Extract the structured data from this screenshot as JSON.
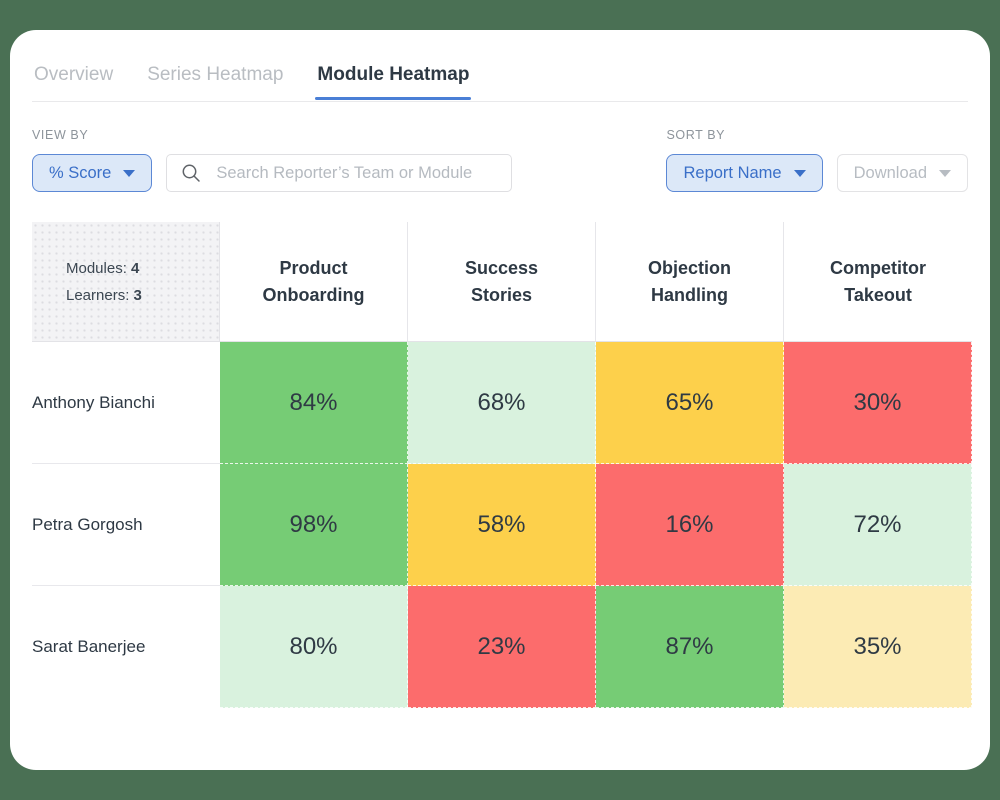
{
  "colors": {
    "page_background": "#4a7054",
    "card_background": "#ffffff",
    "tab_underline": "#4a7fd6",
    "accent_blue": "#3a6fc8",
    "accent_blue_bg": "#dce8f8",
    "accent_blue_border": "#5c88d5",
    "text_dark": "#2e3944",
    "text_muted": "#b9bdc2",
    "label_gray": "#8d949b"
  },
  "tabs": [
    {
      "label": "Overview",
      "active": false
    },
    {
      "label": "Series Heatmap",
      "active": false
    },
    {
      "label": "Module Heatmap",
      "active": true
    }
  ],
  "filters": {
    "view_by_label": "VIEW BY",
    "view_by_value": "% Score",
    "search_placeholder": "Search Reporter’s Team or Module",
    "sort_by_label": "SORT BY",
    "sort_by_value": "Report Name",
    "download_label": "Download"
  },
  "heatmap": {
    "modules_label": "Modules:",
    "modules_value": "4",
    "learners_label": "Learners:",
    "learners_value": "3",
    "columns": [
      "Product Onboarding",
      "Success Stories",
      "Objection Handling",
      "Competitor Takeout"
    ],
    "tone_colors": {
      "green": "#76cc75",
      "light_green": "#d9f2de",
      "yellow": "#fdd04b",
      "red": "#fc6c6c",
      "light_yellow": "#fcebb4"
    },
    "rows": [
      {
        "name": "Anthony Bianchi",
        "cells": [
          {
            "value": "84%",
            "tone": "green"
          },
          {
            "value": "68%",
            "tone": "light_green"
          },
          {
            "value": "65%",
            "tone": "yellow"
          },
          {
            "value": "30%",
            "tone": "red"
          }
        ]
      },
      {
        "name": "Petra Gorgosh",
        "cells": [
          {
            "value": "98%",
            "tone": "green"
          },
          {
            "value": "58%",
            "tone": "yellow"
          },
          {
            "value": "16%",
            "tone": "red"
          },
          {
            "value": "72%",
            "tone": "light_green"
          }
        ]
      },
      {
        "name": "Sarat Banerjee",
        "cells": [
          {
            "value": "80%",
            "tone": "light_green"
          },
          {
            "value": "23%",
            "tone": "red"
          },
          {
            "value": "87%",
            "tone": "green"
          },
          {
            "value": "35%",
            "tone": "light_yellow"
          }
        ]
      }
    ]
  },
  "chart_data": {
    "type": "heatmap",
    "title": "Module Heatmap",
    "x_labels": [
      "Product Onboarding",
      "Success Stories",
      "Objection Handling",
      "Competitor Takeout"
    ],
    "y_labels": [
      "Anthony Bianchi",
      "Petra Gorgosh",
      "Sarat Banerjee"
    ],
    "values_percent": [
      [
        84,
        68,
        65,
        30
      ],
      [
        98,
        58,
        16,
        72
      ],
      [
        80,
        23,
        87,
        35
      ]
    ]
  }
}
